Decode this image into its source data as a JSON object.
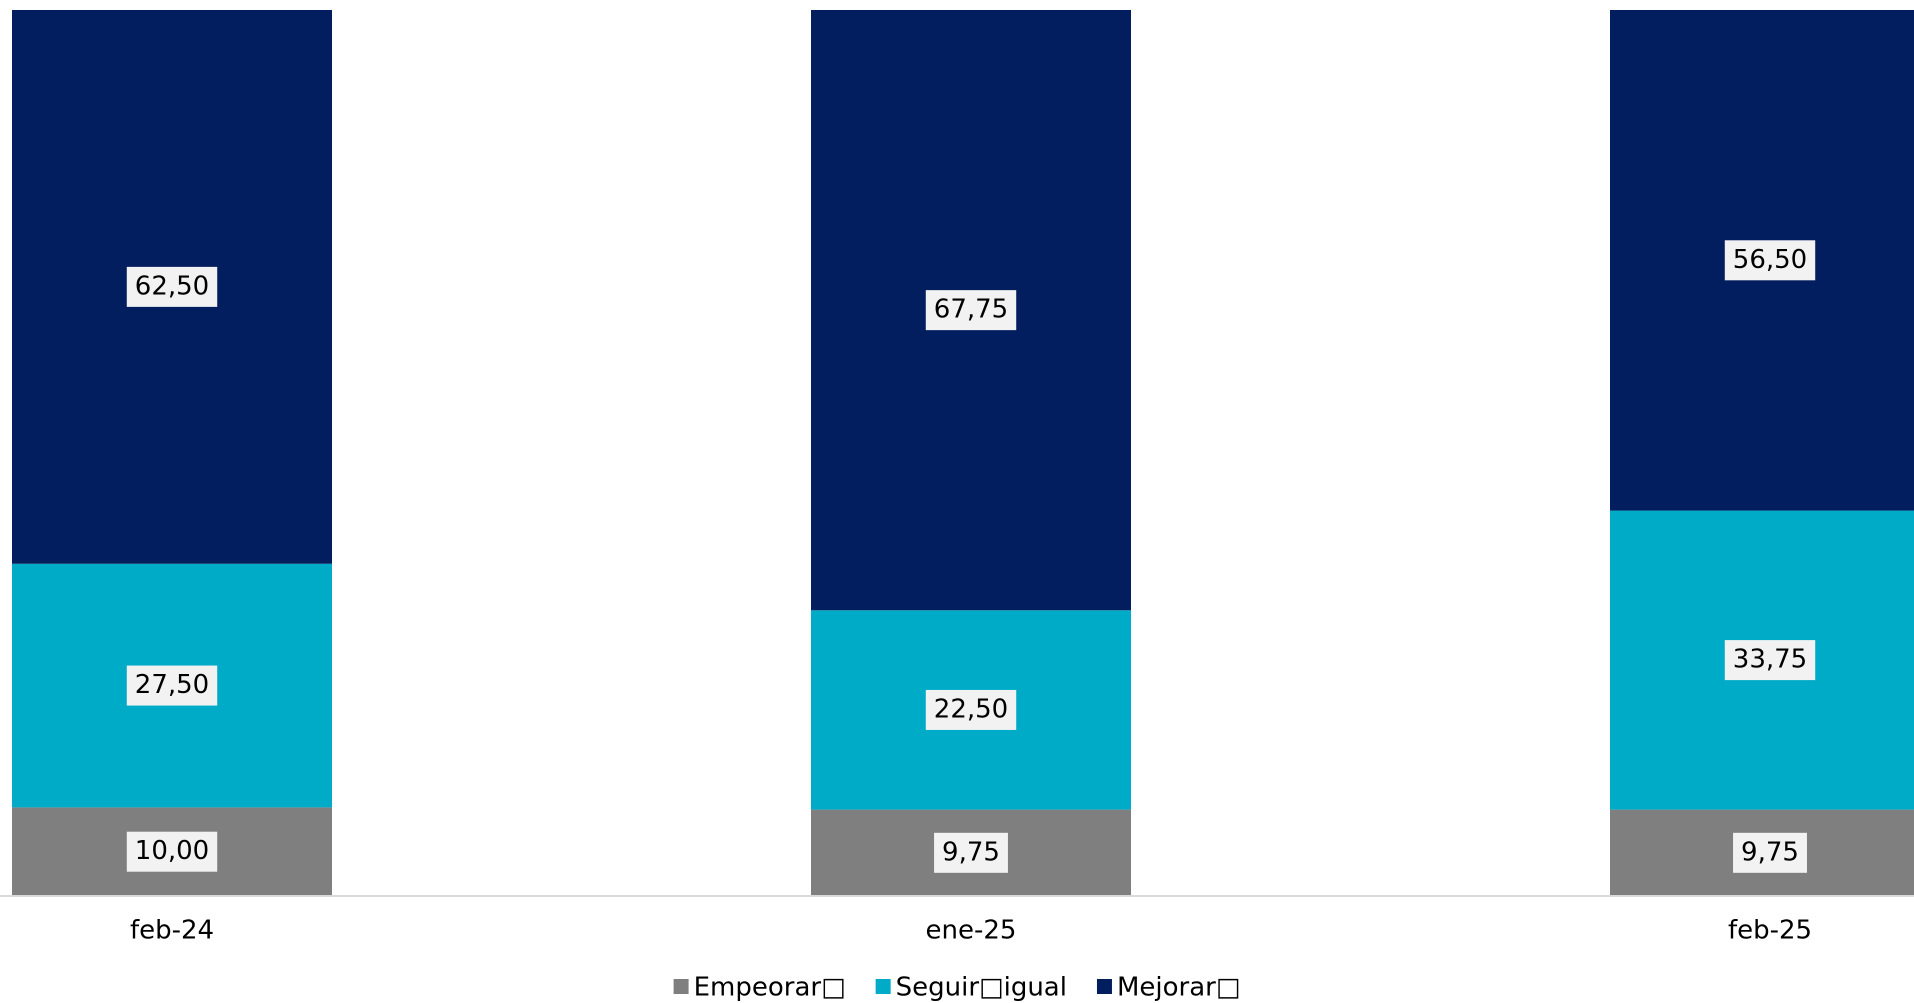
{
  "chart_data": {
    "type": "stacked_bar",
    "categories": [
      "feb-24",
      "ene-25",
      "feb-25"
    ],
    "series": [
      {
        "name": "Empeorar□",
        "color": "#7f7f7f",
        "values": [
          10.0,
          9.75,
          9.75
        ],
        "value_labels": [
          "10,00",
          "9,75",
          "9,75"
        ]
      },
      {
        "name": "Seguir□igual",
        "color": "#00abc7",
        "values": [
          27.5,
          22.5,
          33.75
        ],
        "value_labels": [
          "27,50",
          "22,50",
          "33,75"
        ]
      },
      {
        "name": "Mejorar□",
        "color": "#031e5e",
        "values": [
          62.5,
          67.75,
          56.5
        ],
        "value_labels": [
          "62,50",
          "67,75",
          "56,50"
        ]
      }
    ],
    "ylim": [
      0,
      100
    ],
    "legend": "bottom"
  }
}
